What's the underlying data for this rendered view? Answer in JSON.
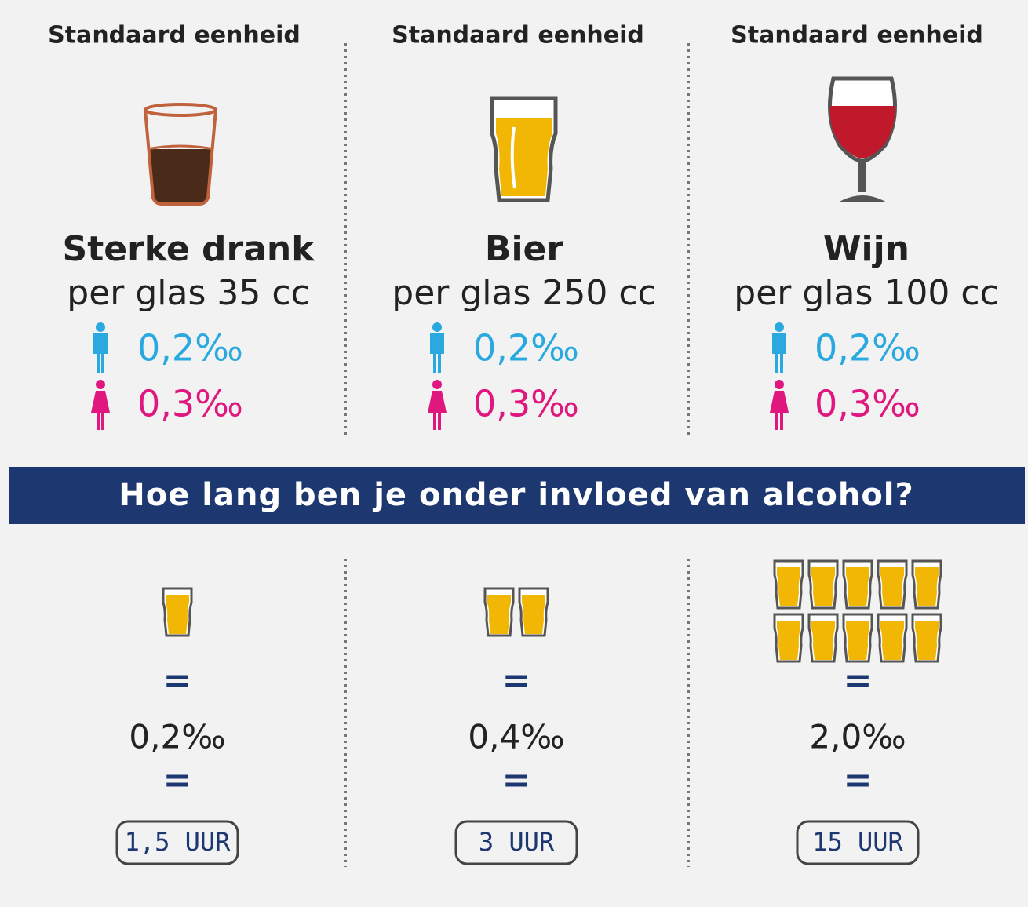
{
  "columns": [
    {
      "header": "Standaard eenheid",
      "drink": "Sterke drank",
      "volume": "per glas 35 cc",
      "male": "0,2‰",
      "female": "0,3‰"
    },
    {
      "header": "Standaard eenheid",
      "drink": "Bier",
      "volume": "per glas 250 cc",
      "male": "0,2‰",
      "female": "0,3‰"
    },
    {
      "header": "Standaard eenheid",
      "drink": "Wijn",
      "volume": "per glas 100 cc",
      "male": "0,2‰",
      "female": "0,3‰"
    }
  ],
  "banner": "Hoe lang ben je onder invloed van alcohol?",
  "examples": [
    {
      "glass_count": 1,
      "equals_1": "=",
      "promille": "0,2‰",
      "equals_2": "=",
      "duration": "1,5 UUR"
    },
    {
      "glass_count": 2,
      "equals_1": "=",
      "promille": "0,4‰",
      "equals_2": "=",
      "duration": "3 UUR"
    },
    {
      "glass_count": 10,
      "equals_1": "=",
      "promille": "2,0‰",
      "equals_2": "=",
      "duration": "15 UUR"
    }
  ]
}
